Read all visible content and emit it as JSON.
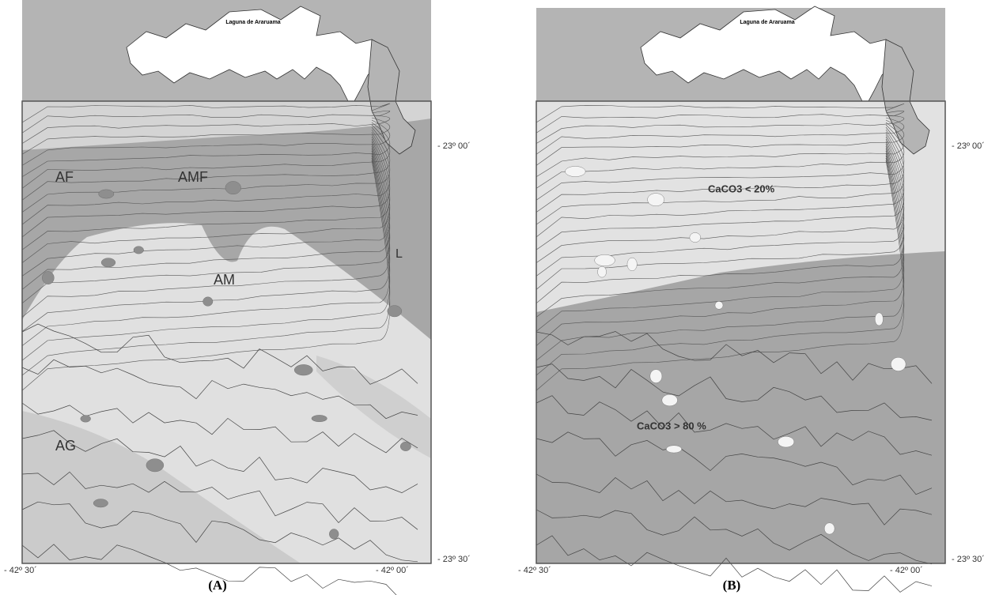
{
  "panels": [
    {
      "label": "(A)",
      "lagoon": "Laguna de Araruama",
      "zones": [
        "AF",
        "AMF",
        "AM",
        "AG",
        "L"
      ],
      "lat_ticks": [
        "- 23º 00´",
        "- 23º 30´"
      ],
      "lon_ticks": [
        "- 42º 30´",
        "- 42º 00´"
      ]
    },
    {
      "label": "(B)",
      "lagoon": "Laguna de Araruama",
      "zones": [
        "CaCO3 < 20%",
        "CaCO3 > 80 %"
      ],
      "lat_ticks": [
        "- 23º 00´",
        "- 23º 30´"
      ],
      "lon_ticks": [
        "- 42º 30´",
        "- 42º 00´"
      ]
    }
  ]
}
